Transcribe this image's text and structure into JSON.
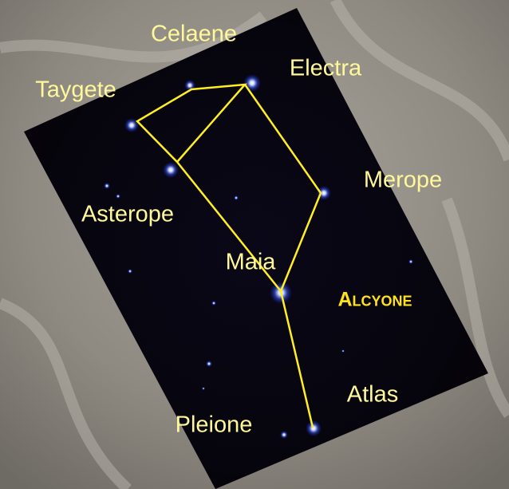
{
  "stars": [
    {
      "label": "Celaene"
    },
    {
      "label": "Electra"
    },
    {
      "label": "Taygete"
    },
    {
      "label": "Merope"
    },
    {
      "label": "Asterope"
    },
    {
      "label": "Maia"
    },
    {
      "label": "Alcyone"
    },
    {
      "label": "Atlas"
    },
    {
      "label": "Pleione"
    }
  ]
}
